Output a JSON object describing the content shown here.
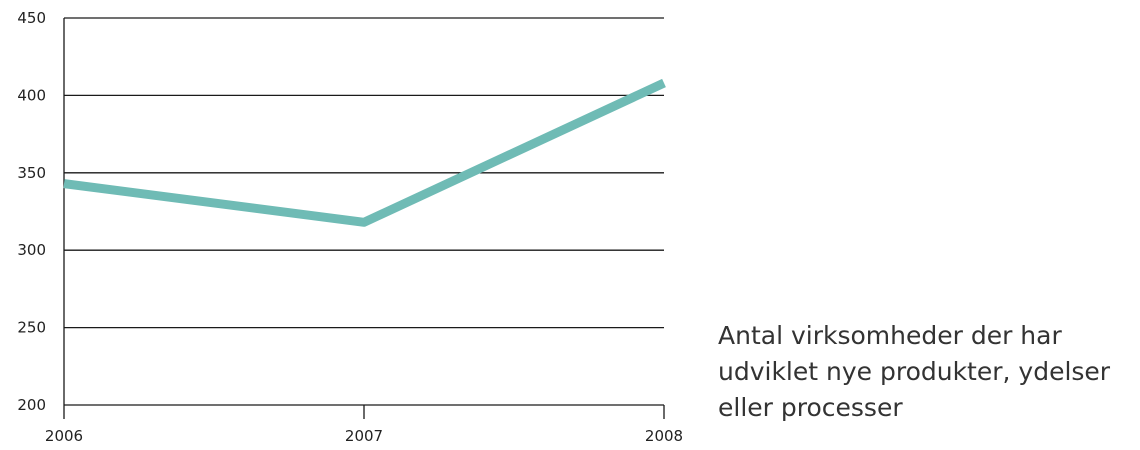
{
  "chart_data": {
    "type": "line",
    "title": "",
    "xlabel": "",
    "ylabel": "",
    "categories": [
      "2006",
      "2007",
      "2008"
    ],
    "series": [
      {
        "name": "Antal virksomheder der har udviklet nye produkter, ydelser eller processer",
        "values": [
          343,
          318,
          408
        ],
        "color": "#6fbbb5"
      }
    ],
    "ylim": [
      200,
      450
    ],
    "yticks": [
      "200",
      "250",
      "300",
      "350",
      "400",
      "450"
    ],
    "grid": "horizontal",
    "legend_placement": "bottom-right",
    "legend_lines": [
      "Antal virksomheder der har",
      "udviklet nye produkter, ydelser",
      "eller processer"
    ],
    "axis_color": "#1a1a1a"
  }
}
